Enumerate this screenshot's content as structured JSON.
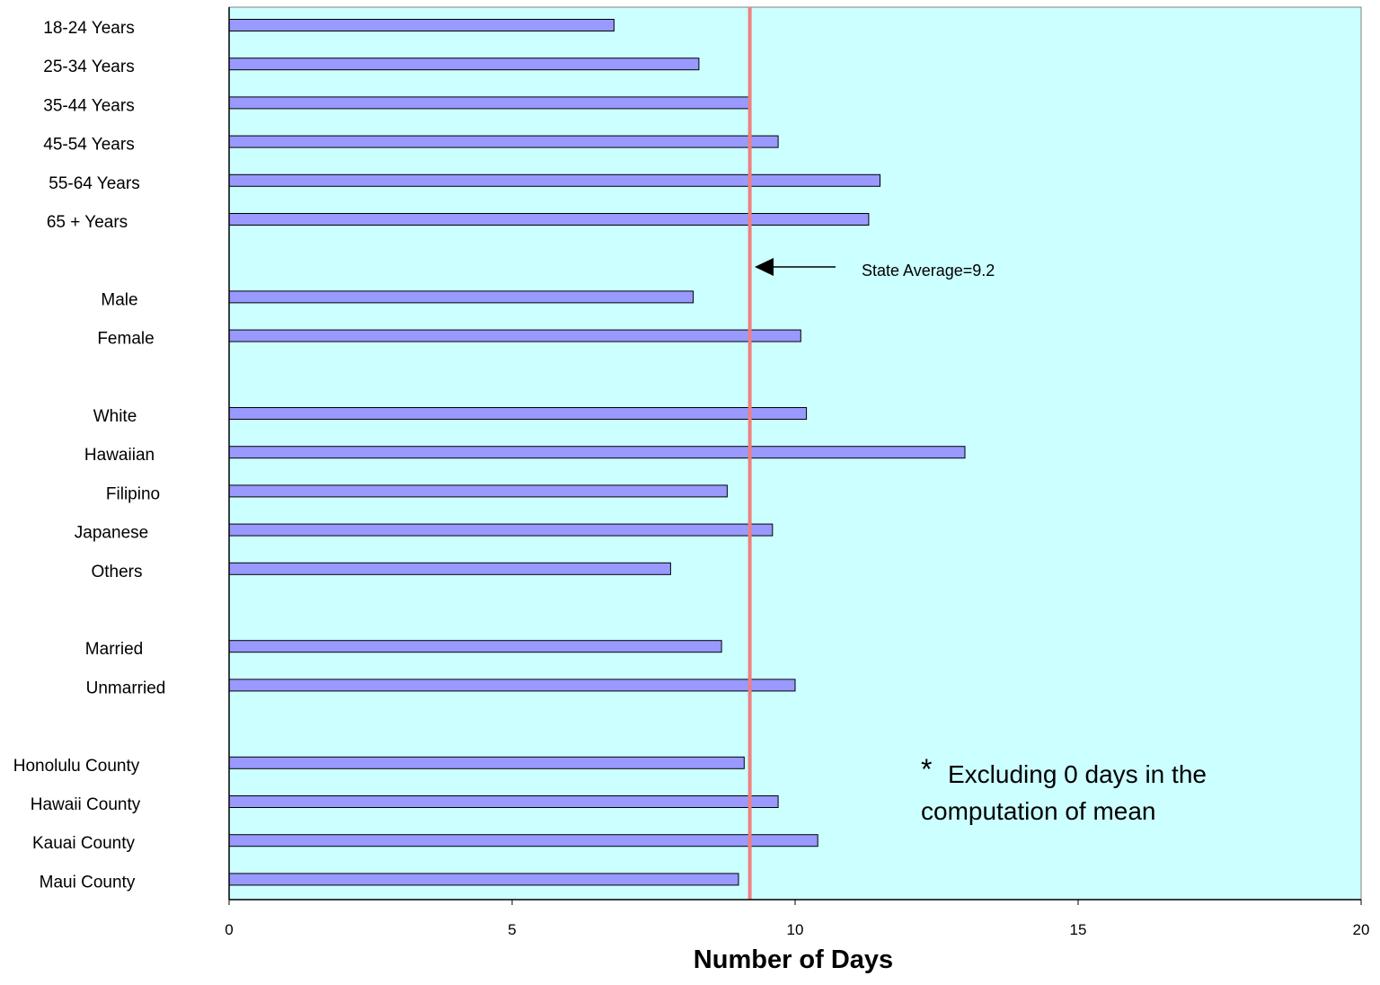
{
  "chart_data": {
    "type": "bar",
    "orientation": "horizontal",
    "title": "",
    "xlabel": "Number of Days",
    "ylabel": "",
    "xlim": [
      0,
      20
    ],
    "xticks": [
      0,
      5,
      10,
      15,
      20
    ],
    "categories": [
      "18-24 Years",
      "25-34 Years",
      "35-44 Years",
      "45-54 Years",
      "55-64 Years",
      "65 + Years",
      "",
      "Male",
      "Female",
      "",
      "White",
      "Hawaiian",
      "Filipino",
      "Japanese",
      "Others",
      "",
      "Married",
      "Unmarried",
      "",
      "Honolulu County",
      "Hawaii County",
      "Kauai County",
      "Maui County"
    ],
    "values": [
      6.8,
      8.3,
      9.2,
      9.7,
      11.5,
      11.3,
      null,
      8.2,
      10.1,
      null,
      10.2,
      13.0,
      8.8,
      9.6,
      7.8,
      null,
      8.7,
      10.0,
      null,
      9.1,
      9.7,
      10.4,
      9.0
    ],
    "reference_line": {
      "value": 9.2,
      "label": "State Average=9.2",
      "color": "#f08080"
    },
    "annotation": {
      "star": "*",
      "line1": "Excluding 0 days in the",
      "line2": "computation of mean"
    },
    "colors": {
      "plot_background": "#ccffff",
      "bar_fill": "#9999ff",
      "bar_stroke": "#000000"
    },
    "grid": false
  }
}
